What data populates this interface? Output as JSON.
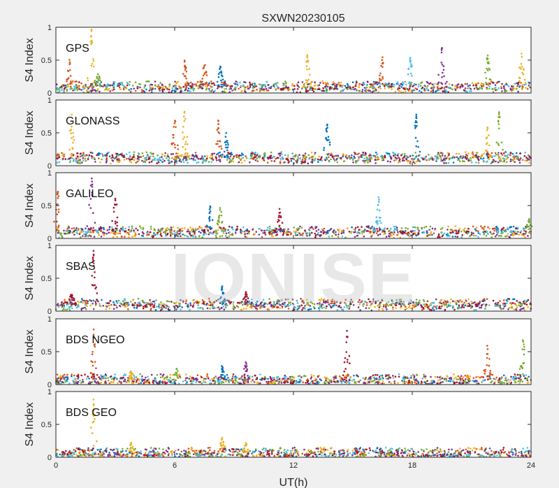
{
  "chart_data": {
    "type": "scatter",
    "title": "SXWN20230105",
    "xlabel": "UT(h)",
    "xlim": [
      0,
      24
    ],
    "xticks": [
      0,
      6,
      12,
      18,
      24
    ],
    "xtick_labels": [
      "0",
      "6",
      "12",
      "18",
      "24"
    ],
    "watermark": "IONISE",
    "series_colors": [
      "#0072BD",
      "#D95319",
      "#EDB120",
      "#7E2F8E",
      "#77AC30",
      "#4DBEEE",
      "#A2142F"
    ],
    "panels": [
      {
        "label": "GPS",
        "ylabel": "S4 Index",
        "ylim": [
          0,
          1
        ],
        "yticks": [
          0,
          0.5,
          1
        ],
        "ytick_labels": [
          "0",
          "0.5",
          "1"
        ],
        "baseline": 0.09,
        "spikes": [
          {
            "x": 0.7,
            "peak": 0.55,
            "color": 1
          },
          {
            "x": 1.8,
            "peak": 0.98,
            "color": 2
          },
          {
            "x": 2.1,
            "peak": 0.35,
            "color": 4
          },
          {
            "x": 6.5,
            "peak": 0.5,
            "color": 1
          },
          {
            "x": 7.5,
            "peak": 0.48,
            "color": 1
          },
          {
            "x": 8.3,
            "peak": 0.42,
            "color": 0
          },
          {
            "x": 12.7,
            "peak": 0.6,
            "color": 2
          },
          {
            "x": 16.5,
            "peak": 0.55,
            "color": 1
          },
          {
            "x": 17.9,
            "peak": 0.55,
            "color": 5
          },
          {
            "x": 19.5,
            "peak": 0.7,
            "color": 3
          },
          {
            "x": 21.8,
            "peak": 0.6,
            "color": 4
          },
          {
            "x": 23.5,
            "peak": 0.65,
            "color": 2
          }
        ]
      },
      {
        "label": "GLONASS",
        "ylabel": "S4 Index",
        "ylim": [
          0,
          1
        ],
        "yticks": [
          0,
          0.5,
          1
        ],
        "ytick_labels": [
          "0",
          "0.5",
          "1"
        ],
        "baseline": 0.12,
        "spikes": [
          {
            "x": 0.8,
            "peak": 0.8,
            "color": 2
          },
          {
            "x": 6.0,
            "peak": 0.75,
            "color": 1
          },
          {
            "x": 6.5,
            "peak": 0.85,
            "color": 2
          },
          {
            "x": 8.2,
            "peak": 0.7,
            "color": 1
          },
          {
            "x": 8.6,
            "peak": 0.5,
            "color": 0
          },
          {
            "x": 13.7,
            "peak": 0.65,
            "color": 0
          },
          {
            "x": 18.2,
            "peak": 0.82,
            "color": 0
          },
          {
            "x": 22.4,
            "peak": 0.85,
            "color": 4
          },
          {
            "x": 21.8,
            "peak": 0.6,
            "color": 2
          }
        ]
      },
      {
        "label": "GALILEO",
        "ylabel": "S4 Index",
        "ylim": [
          0,
          1
        ],
        "yticks": [
          0,
          0.5,
          1
        ],
        "ytick_labels": [
          "0",
          "0.5",
          "1"
        ],
        "baseline": 0.1,
        "spikes": [
          {
            "x": 0.1,
            "peak": 0.75,
            "color": 1
          },
          {
            "x": 1.8,
            "peak": 0.95,
            "color": 3
          },
          {
            "x": 3.0,
            "peak": 0.7,
            "color": 6
          },
          {
            "x": 7.8,
            "peak": 0.5,
            "color": 0
          },
          {
            "x": 8.3,
            "peak": 0.52,
            "color": 4
          },
          {
            "x": 11.3,
            "peak": 0.45,
            "color": 6
          },
          {
            "x": 16.3,
            "peak": 0.68,
            "color": 5
          },
          {
            "x": 23.9,
            "peak": 0.3,
            "color": 4
          }
        ]
      },
      {
        "label": "SBAS",
        "ylabel": "S4 Index",
        "ylim": [
          0,
          1
        ],
        "yticks": [
          0,
          0.5,
          1
        ],
        "ytick_labels": [
          "0",
          "0.5",
          "1"
        ],
        "baseline": 0.1,
        "spikes": [
          {
            "x": 1.9,
            "peak": 0.92,
            "color": 6
          },
          {
            "x": 0.8,
            "peak": 0.28,
            "color": 6
          },
          {
            "x": 8.4,
            "peak": 0.38,
            "color": 0
          },
          {
            "x": 9.6,
            "peak": 0.3,
            "color": 6
          }
        ]
      },
      {
        "label": "BDS NGEO",
        "ylabel": "S4 Index",
        "ylim": [
          0,
          1
        ],
        "yticks": [
          0,
          0.5,
          1
        ],
        "ytick_labels": [
          "0",
          "0.5",
          "1"
        ],
        "baseline": 0.07,
        "spikes": [
          {
            "x": 1.9,
            "peak": 0.88,
            "color": 1
          },
          {
            "x": 3.8,
            "peak": 0.22,
            "color": 2
          },
          {
            "x": 6.1,
            "peak": 0.25,
            "color": 4
          },
          {
            "x": 8.4,
            "peak": 0.3,
            "color": 0
          },
          {
            "x": 9.6,
            "peak": 0.35,
            "color": 3
          },
          {
            "x": 14.7,
            "peak": 0.82,
            "color": 6
          },
          {
            "x": 21.8,
            "peak": 0.62,
            "color": 1
          },
          {
            "x": 23.6,
            "peak": 0.72,
            "color": 4
          }
        ]
      },
      {
        "label": "BDS GEO",
        "ylabel": "S4 Index",
        "ylim": [
          0,
          1
        ],
        "yticks": [
          0,
          0.5,
          1
        ],
        "ytick_labels": [
          "0",
          "0.5",
          "1"
        ],
        "baseline": 0.06,
        "spikes": [
          {
            "x": 1.9,
            "peak": 0.88,
            "color": 2
          },
          {
            "x": 3.8,
            "peak": 0.22,
            "color": 2
          },
          {
            "x": 8.4,
            "peak": 0.3,
            "color": 2
          },
          {
            "x": 9.6,
            "peak": 0.22,
            "color": 2
          }
        ]
      }
    ]
  }
}
